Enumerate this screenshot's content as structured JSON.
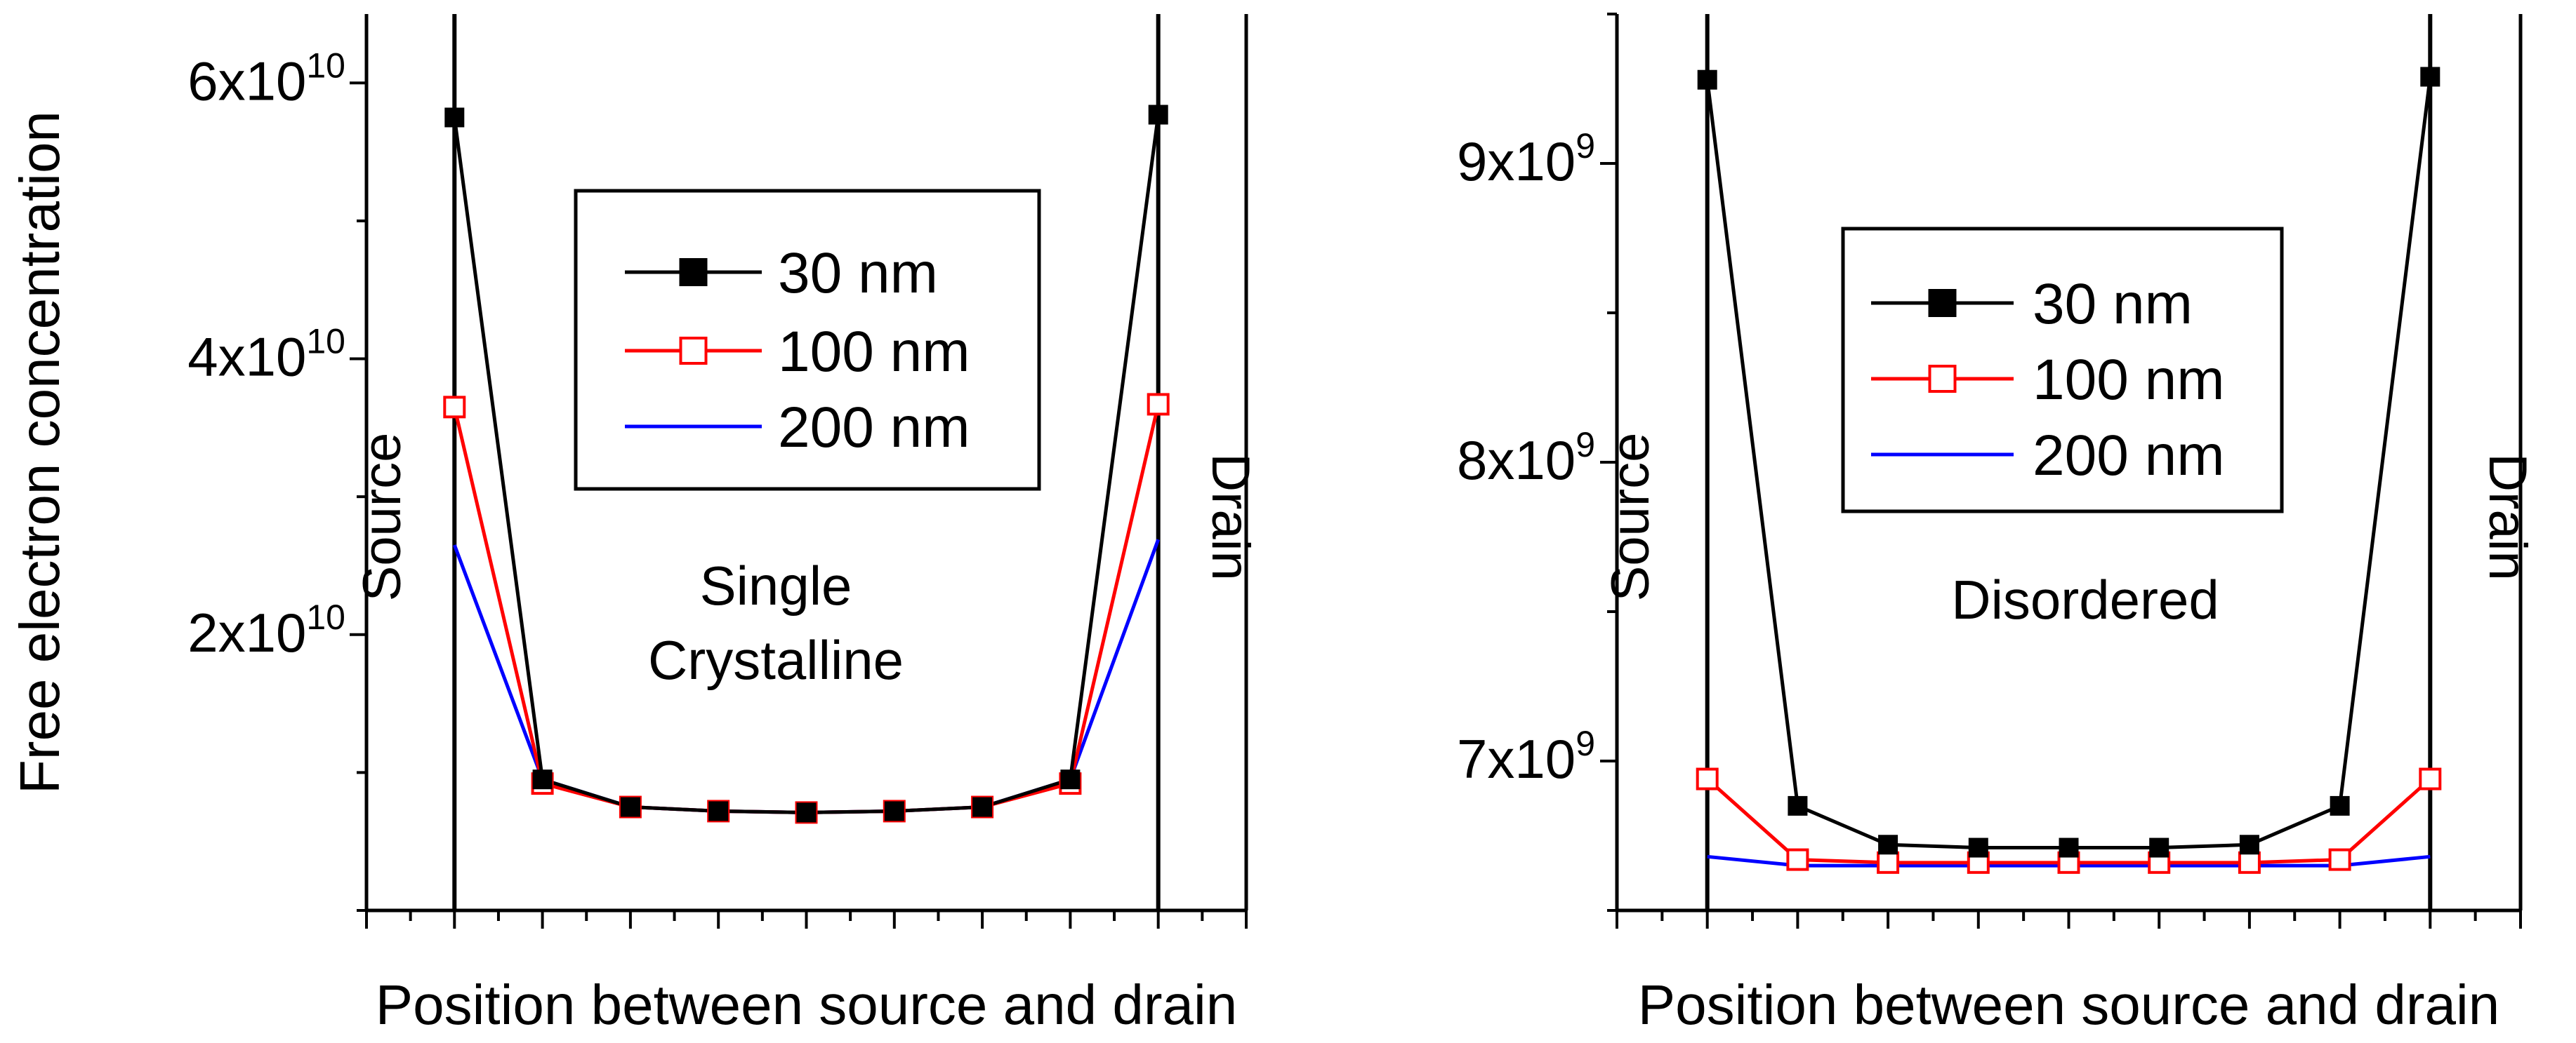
{
  "y_axis_label": "Free electron concentration",
  "chart_data": [
    {
      "type": "line",
      "xlabel": "Position between source and drain",
      "ylabel": "Free electron concentration",
      "annotation_lines": [
        "Single",
        "Crystalline"
      ],
      "source_label": "Source",
      "drain_label": "Drain",
      "xlim": [
        -1,
        9
      ],
      "ylim": [
        0,
        65000000000
      ],
      "y_ticks": [
        {
          "value": 20000000000,
          "mantissa": "2x10",
          "exponent": "10"
        },
        {
          "value": 40000000000,
          "mantissa": "4x10",
          "exponent": "10"
        },
        {
          "value": 60000000000,
          "mantissa": "6x10",
          "exponent": "10"
        }
      ],
      "x": [
        0,
        1,
        2,
        3,
        4,
        5,
        6,
        7,
        8
      ],
      "series": [
        {
          "name": "30 nm",
          "color": "#000000",
          "marker": "filled-square",
          "values": [
            57500000000,
            9500000000,
            7500000000,
            7200000000,
            7100000000,
            7200000000,
            7500000000,
            9500000000,
            57700000000
          ]
        },
        {
          "name": "100 nm",
          "color": "#ff0000",
          "marker": "open-square",
          "values": [
            36500000000,
            9200000000,
            7500000000,
            7200000000,
            7100000000,
            7200000000,
            7500000000,
            9200000000,
            36700000000
          ]
        },
        {
          "name": "200 nm",
          "color": "#0000ff",
          "marker": "none",
          "values": [
            26500000000,
            9500000000,
            7500000000,
            7200000000,
            7100000000,
            7200000000,
            7500000000,
            9500000000,
            26900000000
          ]
        }
      ],
      "legend_position": "top-center"
    },
    {
      "type": "line",
      "xlabel": "Position between source and drain",
      "ylabel": "",
      "annotation_lines": [
        "Disordered"
      ],
      "source_label": "Source",
      "drain_label": "Drain",
      "xlim": [
        -1,
        9
      ],
      "ylim": [
        6500000000,
        9500000000
      ],
      "y_ticks": [
        {
          "value": 7000000000,
          "mantissa": "7x10",
          "exponent": "9"
        },
        {
          "value": 8000000000,
          "mantissa": "8x10",
          "exponent": "9"
        },
        {
          "value": 9000000000,
          "mantissa": "9x10",
          "exponent": "9"
        }
      ],
      "x": [
        0,
        1,
        2,
        3,
        4,
        5,
        6,
        7,
        8
      ],
      "series": [
        {
          "name": "30 nm",
          "color": "#000000",
          "marker": "filled-square",
          "values": [
            9280000000,
            6850000000,
            6720000000,
            6710000000,
            6710000000,
            6710000000,
            6720000000,
            6850000000,
            9290000000
          ]
        },
        {
          "name": "100 nm",
          "color": "#ff0000",
          "marker": "open-square",
          "values": [
            6940000000,
            6670000000,
            6660000000,
            6660000000,
            6660000000,
            6660000000,
            6660000000,
            6670000000,
            6940000000
          ]
        },
        {
          "name": "200 nm",
          "color": "#0000ff",
          "marker": "none",
          "values": [
            6680000000,
            6650000000,
            6650000000,
            6650000000,
            6650000000,
            6650000000,
            6650000000,
            6650000000,
            6680000000
          ]
        }
      ],
      "legend_position": "top-center"
    }
  ]
}
